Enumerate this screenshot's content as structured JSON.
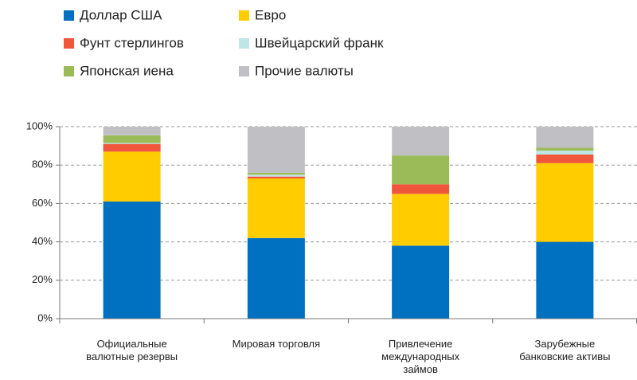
{
  "chart_data": {
    "type": "stacked_bar",
    "categories": [
      "Официальные валютные резервы",
      "Мировая торговля",
      "Привлечение международных займов",
      "Зарубежные банковские активы"
    ],
    "series": [
      {
        "name": "Доллар США",
        "color": "#0070c0",
        "values": [
          61,
          42,
          38,
          40
        ]
      },
      {
        "name": "Евро",
        "color": "#ffcc00",
        "values": [
          26,
          31,
          27,
          41
        ]
      },
      {
        "name": "Фунт стерлингов",
        "color": "#f0563c",
        "values": [
          4,
          1,
          5,
          4.5
        ]
      },
      {
        "name": "Швейцарский франк",
        "color": "#bfe6e6",
        "values": [
          0.5,
          1,
          0,
          2
        ]
      },
      {
        "name": "Японская иена",
        "color": "#9bbb59",
        "values": [
          4,
          1,
          15,
          1.5
        ]
      },
      {
        "name": "Прочие валюты",
        "color": "#c0c0c4",
        "values": [
          4.5,
          24,
          15,
          11
        ]
      }
    ],
    "ylim": [
      0,
      100
    ],
    "yticks": [
      {
        "value": 0,
        "label": "0%"
      },
      {
        "value": 20,
        "label": "20%"
      },
      {
        "value": 40,
        "label": "40%"
      },
      {
        "value": 60,
        "label": "60%"
      },
      {
        "value": 80,
        "label": "80%"
      },
      {
        "value": 100,
        "label": "100%"
      }
    ],
    "grid": true
  }
}
